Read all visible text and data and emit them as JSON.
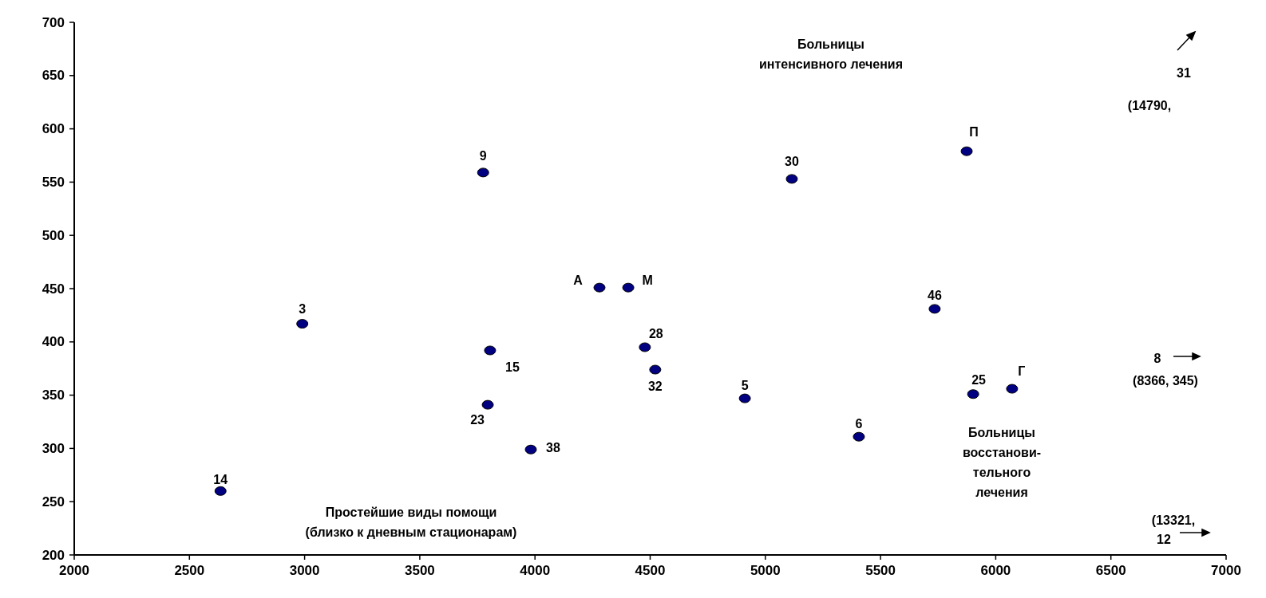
{
  "chart_data": {
    "type": "scatter",
    "x": [
      2635,
      2990,
      3775,
      3805,
      3795,
      3982,
      4280,
      4405,
      4477,
      4522,
      4911,
      5115,
      5406,
      5735,
      5874,
      5902,
      6071
    ],
    "series": [
      {
        "color": "#000080",
        "values": [
          260,
          417,
          559,
          392,
          341,
          299,
          451,
          451,
          395,
          374,
          347,
          553,
          311,
          431,
          579,
          351,
          356
        ]
      }
    ],
    "xlim": [
      2000,
      7000
    ],
    "xticks": [
      2000,
      2500,
      3000,
      3500,
      4000,
      4500,
      5000,
      5500,
      6000,
      6500,
      7000
    ],
    "ylim": [
      200,
      700
    ],
    "yticks": [
      200,
      250,
      300,
      350,
      400,
      450,
      500,
      550,
      600,
      650,
      700
    ],
    "marker": "circle",
    "grid": false,
    "annotations": [
      "Больницы\nинтенсивного лечения",
      "Простейшие виды помощи\n(близко к дневным стационарам)",
      "Больницы\nвосстанови-\nтельного\nлечения",
      {
        "text": "14",
        "x": 2635,
        "y": 260
      },
      {
        "text": "3",
        "x": 2990,
        "y": 417
      },
      {
        "text": "9",
        "x": 3775,
        "y": 559
      },
      {
        "text": "15",
        "x": 3805,
        "y": 392
      },
      {
        "text": "23",
        "x": 3795,
        "y": 341
      },
      {
        "text": "38",
        "x": 3982,
        "y": 299
      },
      {
        "text": "А",
        "x": 4280,
        "y": 451
      },
      {
        "text": "М",
        "x": 4405,
        "y": 451
      },
      {
        "text": "28",
        "x": 4477,
        "y": 395
      },
      {
        "text": "32",
        "x": 4522,
        "y": 374
      },
      {
        "text": "5",
        "x": 4911,
        "y": 347
      },
      {
        "text": "30",
        "x": 5115,
        "y": 553
      },
      {
        "text": "6",
        "x": 5406,
        "y": 311
      },
      {
        "text": "46",
        "x": 5735,
        "y": 431
      },
      {
        "text": "П",
        "x": 5874,
        "y": 579
      },
      {
        "text": "25",
        "x": 5902,
        "y": 351
      },
      {
        "text": "Г",
        "x": 6071,
        "y": 356
      },
      "31",
      "(14790,",
      "8",
      "(8366, 345)",
      "(13321,",
      "12"
    ]
  }
}
